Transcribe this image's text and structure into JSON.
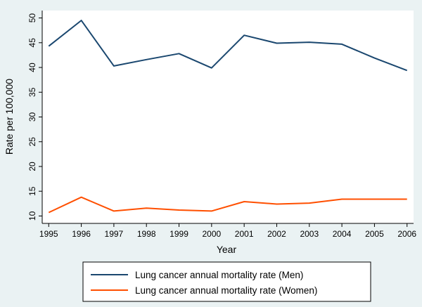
{
  "chart_data": {
    "type": "line",
    "x": [
      1995,
      1996,
      1997,
      1998,
      1999,
      2000,
      2001,
      2002,
      2003,
      2004,
      2005,
      2006
    ],
    "series": [
      {
        "name": "Lung cancer annual mortality rate (Men)",
        "color": "#1a476f",
        "values": [
          44.3,
          49.5,
          40.3,
          41.6,
          42.8,
          39.9,
          46.5,
          44.9,
          45.1,
          44.7,
          41.9,
          39.4
        ]
      },
      {
        "name": "Lung cancer annual mortality rate (Women)",
        "color": "#ff4f00",
        "values": [
          10.7,
          13.8,
          11.0,
          11.6,
          11.2,
          11.0,
          12.9,
          12.4,
          12.6,
          13.4,
          13.4,
          13.4
        ]
      }
    ],
    "xlabel": "Year",
    "ylabel": "Rate per 100,000",
    "xticks": [
      "1995",
      "1996",
      "1997",
      "1998",
      "1999",
      "2000",
      "2001",
      "2002",
      "2003",
      "2004",
      "2005",
      "2006"
    ],
    "yticks": [
      "10",
      "15",
      "20",
      "25",
      "30",
      "35",
      "40",
      "45",
      "50"
    ],
    "ylim": [
      8.5,
      51.5
    ],
    "xlim": [
      1994.8,
      2006.2
    ],
    "grid": false,
    "legend_position": "bottom"
  }
}
